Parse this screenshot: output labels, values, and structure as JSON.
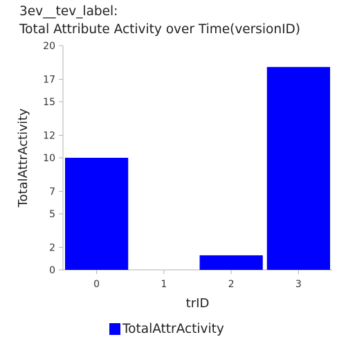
{
  "title_lines": [
    "3ev__tev_label:",
    "Total Attribute Activity over Time(versionID)"
  ],
  "chart_data": {
    "type": "bar",
    "title": "3ev__tev_label: Total Attribute Activity over Time(versionID)",
    "xlabel": "trID",
    "ylabel": "TotalAttrActivity",
    "categories": [
      "0",
      "1",
      "2",
      "3"
    ],
    "series": [
      {
        "name": "TotalAttrActivity",
        "values": [
          10,
          0,
          1.3,
          18.1
        ],
        "color": "#0000ff"
      }
    ],
    "ylim": [
      0,
      20
    ],
    "yticks": [
      0,
      2,
      5,
      7,
      10,
      12,
      15,
      17,
      20
    ],
    "grid": false,
    "legend": "bottom-center"
  },
  "legend_label": "TotalAttrActivity"
}
